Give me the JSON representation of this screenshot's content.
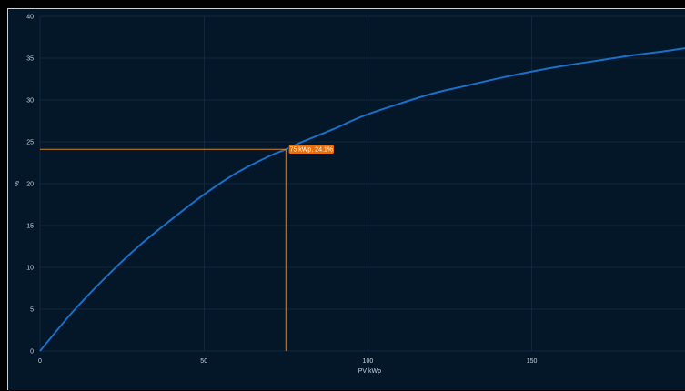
{
  "chart_data": {
    "type": "line",
    "xlabel": "PV kWp",
    "ylabel": "%",
    "xlim": [
      0,
      197
    ],
    "ylim": [
      0,
      40
    ],
    "x_ticks": [
      0,
      50,
      100,
      150
    ],
    "y_ticks": [
      0,
      5,
      10,
      15,
      20,
      25,
      30,
      35,
      40
    ],
    "grid": true,
    "series": [
      {
        "color": "#1a6fc9",
        "x": [
          0,
          10,
          20,
          30,
          40,
          50,
          60,
          70,
          75,
          80,
          90,
          95,
          100,
          110,
          120,
          130,
          140,
          150,
          160,
          170,
          180,
          190,
          197
        ],
        "y": [
          0,
          4.7,
          8.8,
          12.5,
          15.7,
          18.7,
          21.3,
          23.3,
          24.1,
          25.0,
          26.6,
          27.5,
          28.3,
          29.6,
          30.8,
          31.7,
          32.6,
          33.4,
          34.1,
          34.7,
          35.3,
          35.8,
          36.2
        ]
      }
    ],
    "annotation": {
      "x": 75,
      "y": 24.1,
      "label": "75 kWp, 24.1%",
      "line_color": "#d9822b",
      "label_bg": "#e8700c"
    }
  }
}
